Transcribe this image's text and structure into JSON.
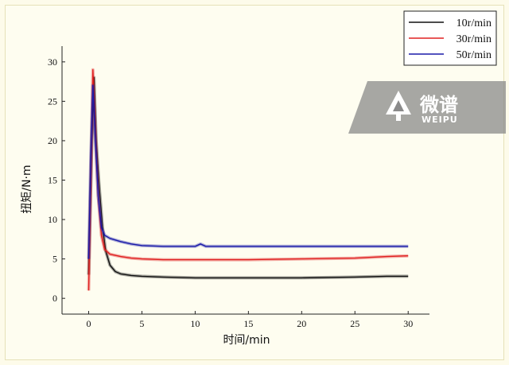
{
  "chart_data": {
    "type": "line",
    "xlabel": "时间/min",
    "ylabel": "扭矩/N·m",
    "xlim": [
      -2.5,
      32
    ],
    "ylim": [
      -2,
      32
    ],
    "xticks": [
      0,
      5,
      10,
      15,
      20,
      25,
      30
    ],
    "yticks": [
      0,
      5,
      10,
      15,
      20,
      25,
      30
    ],
    "grid": false,
    "legend_position": "top-right",
    "series": [
      {
        "name": "10r/min",
        "color": "#111111",
        "x": [
          0.0,
          0.3,
          0.5,
          0.7,
          1.0,
          1.3,
          1.6,
          2.0,
          2.5,
          3.0,
          4.0,
          5.0,
          7.0,
          10.0,
          15.0,
          20.0,
          25.0,
          28.0,
          30.0
        ],
        "y": [
          3.0,
          20.0,
          28.0,
          20.0,
          14.0,
          9.0,
          6.0,
          4.2,
          3.4,
          3.1,
          2.9,
          2.8,
          2.7,
          2.6,
          2.6,
          2.6,
          2.7,
          2.8,
          2.8
        ]
      },
      {
        "name": "30r/min",
        "color": "#e02020",
        "x": [
          0.0,
          0.2,
          0.4,
          0.6,
          0.9,
          1.2,
          1.5,
          2.0,
          3.0,
          4.0,
          5.0,
          7.0,
          10.0,
          15.0,
          20.0,
          25.0,
          28.0,
          30.0
        ],
        "y": [
          1.0,
          15.0,
          29.0,
          22.0,
          13.0,
          8.0,
          6.2,
          5.6,
          5.3,
          5.1,
          5.0,
          4.9,
          4.9,
          4.9,
          5.0,
          5.1,
          5.3,
          5.4
        ]
      },
      {
        "name": "50r/min",
        "color": "#1a1aa8",
        "x": [
          0.0,
          0.2,
          0.4,
          0.6,
          0.9,
          1.2,
          1.5,
          2.0,
          3.0,
          4.0,
          5.0,
          7.0,
          10.0,
          10.5,
          11.0,
          15.0,
          20.0,
          25.0,
          28.0,
          30.0
        ],
        "y": [
          5.0,
          18.0,
          27.0,
          21.0,
          13.0,
          9.0,
          8.0,
          7.6,
          7.2,
          6.9,
          6.7,
          6.6,
          6.6,
          6.9,
          6.6,
          6.6,
          6.6,
          6.6,
          6.6,
          6.6
        ]
      }
    ]
  },
  "watermark": {
    "text": "微谱",
    "subtext": "WEIPU",
    "icon": "weipu-logo-icon"
  }
}
